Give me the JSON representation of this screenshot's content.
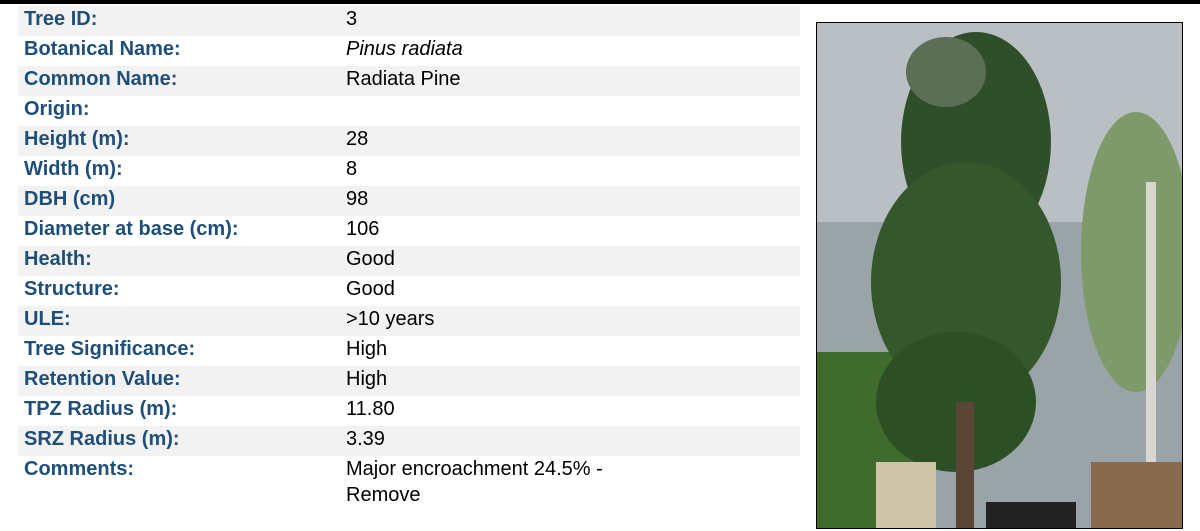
{
  "table": {
    "rows": [
      [
        "Tree ID:",
        "3"
      ],
      [
        "Botanical Name:",
        "Pinus radiata"
      ],
      [
        "Common Name:",
        "Radiata Pine"
      ],
      [
        "Origin:",
        null
      ],
      [
        "Height (m):",
        "28"
      ],
      [
        "Width (m):",
        "8"
      ],
      [
        "DBH (cm)",
        "98"
      ],
      [
        "Diameter at base (cm):",
        "106"
      ],
      [
        "Health:",
        "Good"
      ],
      [
        "Structure:",
        "Good"
      ],
      [
        "ULE:",
        ">10 years"
      ],
      [
        "Tree Significance:",
        "High"
      ],
      [
        "Retention Value:",
        "High"
      ],
      [
        "TPZ Radius (m):",
        "11.80"
      ],
      [
        "SRZ Radius (m):",
        "3.39"
      ],
      [
        "Comments:",
        "Major encroachment 24.5% - Remove"
      ]
    ]
  }
}
